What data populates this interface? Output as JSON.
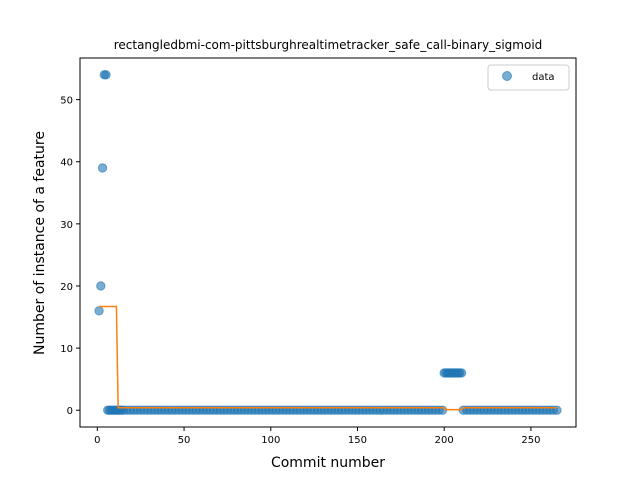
{
  "chart_data": {
    "type": "scatter",
    "title": "rectangledbmi-com-pittsburghrealtimetracker_safe_call-binary_sigmoid",
    "xlabel": "Commit number",
    "ylabel": "Number of instance of a feature",
    "xlim": [
      -10,
      276
    ],
    "ylim": [
      -2.7,
      56.7
    ],
    "xticks": [
      0,
      50,
      100,
      150,
      200,
      250
    ],
    "yticks": [
      0,
      10,
      20,
      30,
      40,
      50
    ],
    "grid": false,
    "legend_position": "top-right",
    "colors": {
      "points": "#1f77b4",
      "fit": "#ff7f0e"
    },
    "series": [
      {
        "name": "data",
        "kind": "scatter",
        "points": [
          [
            1,
            16
          ],
          [
            2,
            20
          ],
          [
            3,
            39
          ],
          [
            4,
            54
          ],
          [
            5,
            54
          ],
          [
            6,
            0
          ],
          [
            7,
            0
          ],
          [
            8,
            0
          ],
          [
            9,
            0
          ],
          [
            10,
            0
          ],
          [
            11,
            0
          ],
          [
            12,
            0
          ],
          [
            13,
            0
          ],
          [
            14,
            0
          ],
          [
            15,
            0
          ],
          [
            17,
            0
          ],
          [
            19,
            0
          ],
          [
            21,
            0
          ],
          [
            23,
            0
          ],
          [
            25,
            0
          ],
          [
            27,
            0
          ],
          [
            29,
            0
          ],
          [
            31,
            0
          ],
          [
            33,
            0
          ],
          [
            35,
            0
          ],
          [
            37,
            0
          ],
          [
            39,
            0
          ],
          [
            41,
            0
          ],
          [
            43,
            0
          ],
          [
            45,
            0
          ],
          [
            47,
            0
          ],
          [
            49,
            0
          ],
          [
            51,
            0
          ],
          [
            53,
            0
          ],
          [
            55,
            0
          ],
          [
            57,
            0
          ],
          [
            59,
            0
          ],
          [
            61,
            0
          ],
          [
            63,
            0
          ],
          [
            65,
            0
          ],
          [
            67,
            0
          ],
          [
            69,
            0
          ],
          [
            71,
            0
          ],
          [
            73,
            0
          ],
          [
            75,
            0
          ],
          [
            77,
            0
          ],
          [
            79,
            0
          ],
          [
            81,
            0
          ],
          [
            83,
            0
          ],
          [
            85,
            0
          ],
          [
            87,
            0
          ],
          [
            89,
            0
          ],
          [
            91,
            0
          ],
          [
            93,
            0
          ],
          [
            95,
            0
          ],
          [
            97,
            0
          ],
          [
            99,
            0
          ],
          [
            101,
            0
          ],
          [
            103,
            0
          ],
          [
            105,
            0
          ],
          [
            107,
            0
          ],
          [
            109,
            0
          ],
          [
            111,
            0
          ],
          [
            113,
            0
          ],
          [
            115,
            0
          ],
          [
            117,
            0
          ],
          [
            119,
            0
          ],
          [
            121,
            0
          ],
          [
            123,
            0
          ],
          [
            125,
            0
          ],
          [
            127,
            0
          ],
          [
            129,
            0
          ],
          [
            131,
            0
          ],
          [
            133,
            0
          ],
          [
            135,
            0
          ],
          [
            137,
            0
          ],
          [
            139,
            0
          ],
          [
            141,
            0
          ],
          [
            143,
            0
          ],
          [
            145,
            0
          ],
          [
            147,
            0
          ],
          [
            149,
            0
          ],
          [
            151,
            0
          ],
          [
            153,
            0
          ],
          [
            155,
            0
          ],
          [
            157,
            0
          ],
          [
            159,
            0
          ],
          [
            161,
            0
          ],
          [
            163,
            0
          ],
          [
            165,
            0
          ],
          [
            167,
            0
          ],
          [
            169,
            0
          ],
          [
            171,
            0
          ],
          [
            173,
            0
          ],
          [
            175,
            0
          ],
          [
            177,
            0
          ],
          [
            179,
            0
          ],
          [
            181,
            0
          ],
          [
            183,
            0
          ],
          [
            185,
            0
          ],
          [
            187,
            0
          ],
          [
            189,
            0
          ],
          [
            191,
            0
          ],
          [
            193,
            0
          ],
          [
            195,
            0
          ],
          [
            197,
            0
          ],
          [
            199,
            0
          ],
          [
            200,
            6
          ],
          [
            201,
            6
          ],
          [
            202,
            6
          ],
          [
            203,
            6
          ],
          [
            204,
            6
          ],
          [
            205,
            6
          ],
          [
            206,
            6
          ],
          [
            207,
            6
          ],
          [
            208,
            6
          ],
          [
            209,
            6
          ],
          [
            210,
            6
          ],
          [
            211,
            0
          ],
          [
            213,
            0
          ],
          [
            215,
            0
          ],
          [
            217,
            0
          ],
          [
            219,
            0
          ],
          [
            221,
            0
          ],
          [
            223,
            0
          ],
          [
            225,
            0
          ],
          [
            227,
            0
          ],
          [
            229,
            0
          ],
          [
            231,
            0
          ],
          [
            233,
            0
          ],
          [
            235,
            0
          ],
          [
            237,
            0
          ],
          [
            239,
            0
          ],
          [
            241,
            0
          ],
          [
            243,
            0
          ],
          [
            245,
            0
          ],
          [
            247,
            0
          ],
          [
            249,
            0
          ],
          [
            251,
            0
          ],
          [
            253,
            0
          ],
          [
            255,
            0
          ],
          [
            257,
            0
          ],
          [
            259,
            0
          ],
          [
            261,
            0
          ],
          [
            263,
            0
          ],
          [
            265,
            0
          ]
        ]
      },
      {
        "kind": "step-line",
        "points": [
          [
            1,
            16.7
          ],
          [
            11,
            16.7
          ],
          [
            12,
            0.4
          ],
          [
            200,
            0.4
          ],
          [
            201,
            0.1
          ],
          [
            210,
            0.1
          ],
          [
            211,
            0.4
          ],
          [
            265,
            0.4
          ]
        ]
      }
    ],
    "legend": [
      {
        "label": "data",
        "marker": "circle"
      }
    ]
  }
}
